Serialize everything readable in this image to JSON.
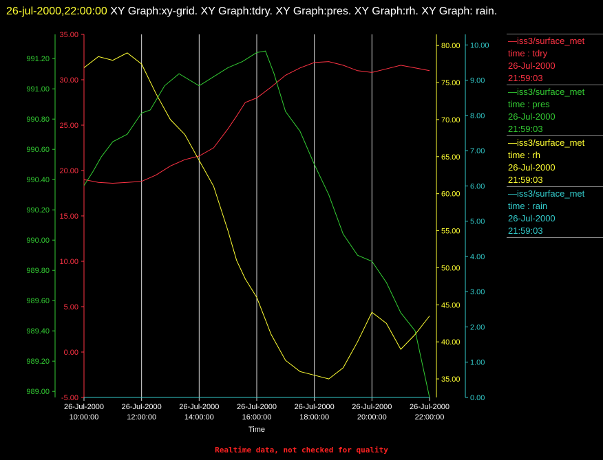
{
  "header": {
    "timestamp": "26-jul-2000,22:00:00",
    "graphs": " XY Graph:xy-grid.  XY Graph:tdry.  XY Graph:pres.  XY Graph:rh.  XY Graph: rain."
  },
  "footer": {
    "note": "Realtime data, not checked for quality"
  },
  "colors": {
    "tdry": "#ff3344",
    "pres": "#33cc33",
    "rh": "#ffff33",
    "rain": "#33cccc",
    "grid": "#dddddd"
  },
  "chart_data": {
    "type": "line",
    "xlabel": "Time",
    "x_ticks": [
      {
        "t": 10,
        "line1": "26-Jul-2000",
        "line2": "10:00:00"
      },
      {
        "t": 12,
        "line1": "26-Jul-2000",
        "line2": "12:00:00"
      },
      {
        "t": 14,
        "line1": "26-Jul-2000",
        "line2": "14:00:00"
      },
      {
        "t": 16,
        "line1": "26-Jul-2000",
        "line2": "16:00:00"
      },
      {
        "t": 18,
        "line1": "26-Jul-2000",
        "line2": "18:00:00"
      },
      {
        "t": 20,
        "line1": "26-Jul-2000",
        "line2": "20:00:00"
      },
      {
        "t": 22,
        "line1": "26-Jul-2000",
        "line2": "22:00:00"
      }
    ],
    "xlim": [
      10,
      22
    ],
    "grid": true,
    "legend_position": "right",
    "series": [
      {
        "name": "tdry",
        "legend": [
          "—iss3/surface_met",
          "time : tdry",
          "26-Jul-2000",
          "21:59:03"
        ],
        "axis": "left-outer",
        "ylim": [
          -5,
          35
        ],
        "ticks": [
          "-5.00",
          "0.00",
          "5.00",
          "10.00",
          "15.00",
          "20.00",
          "25.00",
          "30.00",
          "35.00"
        ],
        "tick_values": [
          -5,
          0,
          5,
          10,
          15,
          20,
          25,
          30,
          35
        ],
        "x": [
          10,
          10.5,
          11,
          11.5,
          12,
          12.5,
          13,
          13.5,
          14,
          14.5,
          15,
          15.3,
          15.6,
          16,
          16.5,
          17,
          17.5,
          18,
          18.5,
          19,
          19.5,
          20,
          20.5,
          21,
          21.5,
          22
        ],
        "y": [
          19,
          18.7,
          18.6,
          18.7,
          18.8,
          19.5,
          20.5,
          21.2,
          21.6,
          22.5,
          24.6,
          26,
          27.5,
          28,
          29.2,
          30.5,
          31.3,
          31.9,
          32,
          31.6,
          31,
          30.8,
          31.2,
          31.6,
          31.3,
          31
        ]
      },
      {
        "name": "pres",
        "legend": [
          "—iss3/surface_met",
          "time : pres",
          "26-Jul-2000",
          "21:59:03"
        ],
        "axis": "left-inner",
        "ylim": [
          988.96,
          991.36
        ],
        "ticks": [
          "989.00",
          "989.20",
          "989.40",
          "989.60",
          "989.80",
          "990.00",
          "990.20",
          "990.40",
          "990.60",
          "990.80",
          "991.00",
          "991.20"
        ],
        "tick_values": [
          989,
          989.2,
          989.4,
          989.6,
          989.8,
          990,
          990.2,
          990.4,
          990.6,
          990.8,
          991,
          991.2
        ],
        "x": [
          10,
          10.3,
          10.6,
          11,
          11.5,
          12,
          12.3,
          12.8,
          13.3,
          14,
          14.5,
          15,
          15.5,
          16,
          16.3,
          16.6,
          17,
          17.5,
          18,
          18.5,
          19,
          19.5,
          20,
          20.5,
          21,
          21.5,
          22
        ],
        "y": [
          990.36,
          990.45,
          990.55,
          990.65,
          990.7,
          990.84,
          990.86,
          991.02,
          991.1,
          991.02,
          991.08,
          991.14,
          991.18,
          991.24,
          991.25,
          991.1,
          990.85,
          990.72,
          990.5,
          990.3,
          990.04,
          989.9,
          989.86,
          989.72,
          989.52,
          989.4,
          988.96
        ]
      },
      {
        "name": "rh",
        "legend": [
          "—iss3/surface_met",
          "time : rh",
          "26-Jul-2000",
          "21:59:03"
        ],
        "axis": "right-inner",
        "ylim": [
          32.5,
          81.5
        ],
        "ticks": [
          "35.00",
          "40.00",
          "45.00",
          "50.00",
          "55.00",
          "60.00",
          "65.00",
          "70.00",
          "75.00",
          "80.00"
        ],
        "tick_values": [
          35,
          40,
          45,
          50,
          55,
          60,
          65,
          70,
          75,
          80
        ],
        "x": [
          10,
          10.5,
          11,
          11.5,
          12,
          12.5,
          13,
          13.5,
          14,
          14.5,
          15,
          15.3,
          15.6,
          16,
          16.5,
          17,
          17.5,
          18,
          18.5,
          19,
          19.5,
          20,
          20.5,
          21,
          21.5,
          22
        ],
        "y": [
          77,
          78.5,
          78,
          79,
          77.5,
          73.5,
          70,
          68,
          64.5,
          61,
          55,
          51,
          48.5,
          46,
          41,
          37.5,
          36,
          35.5,
          35,
          36.5,
          40,
          44,
          42.5,
          39,
          41,
          43.5
        ]
      },
      {
        "name": "rain",
        "legend": [
          "—iss3/surface_met",
          "time : rain",
          "26-Jul-2000",
          "21:59:03"
        ],
        "axis": "right-outer",
        "ylim": [
          0,
          10.3
        ],
        "ticks": [
          "0.00",
          "1.00",
          "2.00",
          "3.00",
          "4.00",
          "5.00",
          "6.00",
          "7.00",
          "8.00",
          "9.00",
          "10.00"
        ],
        "tick_values": [
          0,
          1,
          2,
          3,
          4,
          5,
          6,
          7,
          8,
          9,
          10
        ],
        "x": [
          10,
          22
        ],
        "y": [
          0,
          0
        ]
      }
    ]
  }
}
